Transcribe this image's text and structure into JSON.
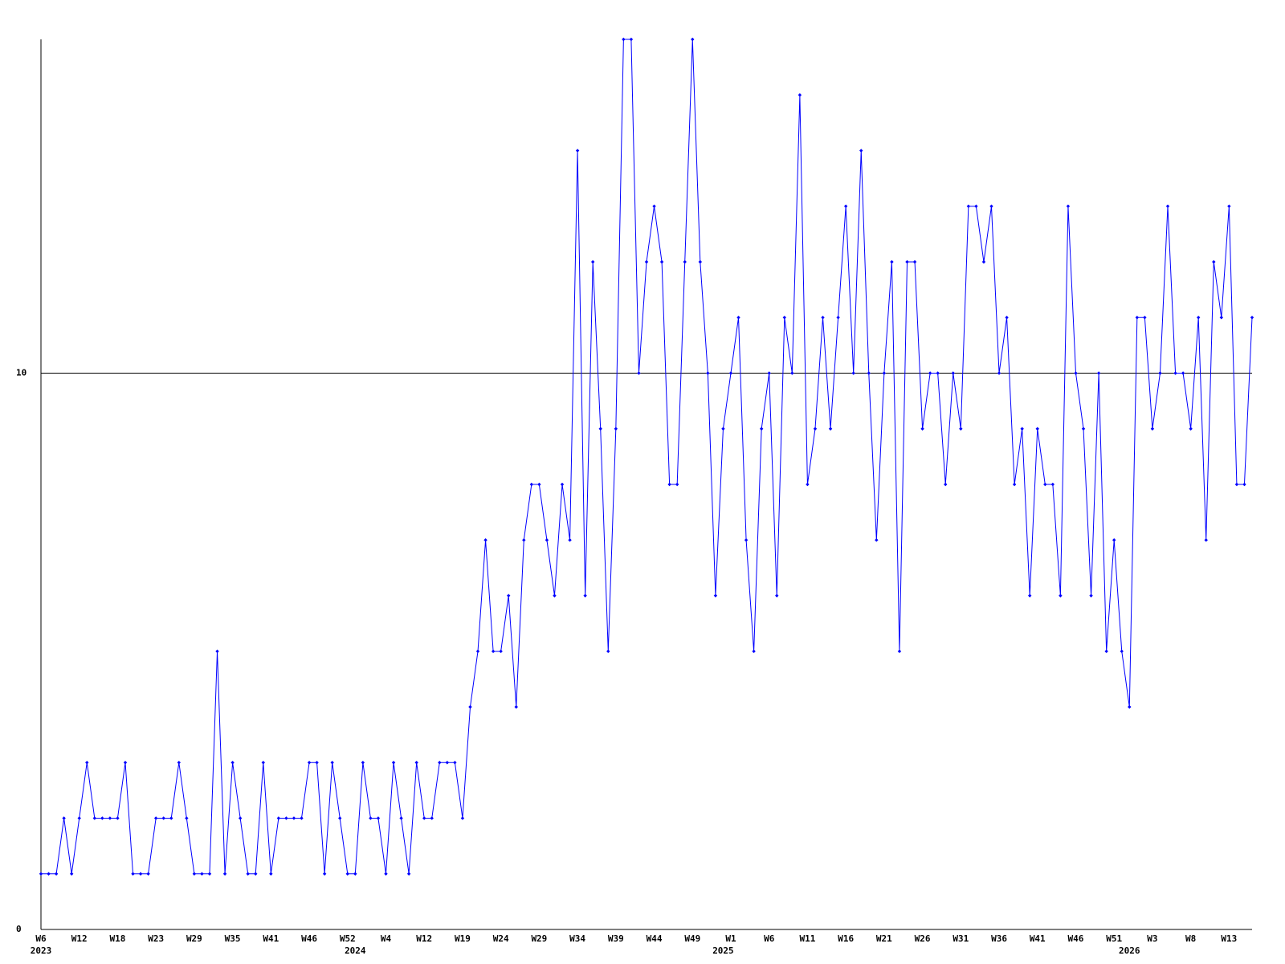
{
  "chart_data": {
    "type": "line",
    "color": "#0000ff",
    "ylim": [
      0,
      16
    ],
    "yticks": [
      0,
      10
    ],
    "grid": true,
    "values": [
      1,
      1,
      1,
      2,
      1,
      2,
      3,
      2,
      2,
      2,
      2,
      3,
      1,
      1,
      1,
      2,
      2,
      2,
      3,
      2,
      1,
      1,
      1,
      5,
      1,
      3,
      2,
      1,
      1,
      3,
      1,
      2,
      2,
      2,
      2,
      3,
      3,
      1,
      3,
      2,
      1,
      1,
      3,
      2,
      2,
      1,
      3,
      2,
      1,
      3,
      2,
      2,
      3,
      3,
      3,
      2,
      4,
      5,
      7,
      5,
      5,
      6,
      4,
      7,
      8,
      8,
      7,
      6,
      8,
      7,
      14,
      6,
      12,
      9,
      5,
      9,
      16,
      16,
      10,
      12,
      13,
      12,
      8,
      8,
      12,
      16,
      12,
      10,
      6,
      9,
      10,
      11,
      7,
      5,
      9,
      10,
      6,
      11,
      10,
      15,
      8,
      9,
      11,
      9,
      11,
      13,
      10,
      14,
      10,
      7,
      10,
      12,
      5,
      12,
      12,
      9,
      10,
      10,
      8,
      10,
      9,
      13,
      13,
      12,
      13,
      10,
      11,
      8,
      9,
      6,
      9,
      8,
      8,
      6,
      13,
      10,
      9,
      6,
      10,
      5,
      7,
      5,
      4,
      11,
      11,
      9,
      10,
      13,
      10,
      10,
      9,
      11,
      7,
      12,
      11,
      13,
      8,
      8,
      11
    ],
    "categories": [
      "W6",
      null,
      null,
      null,
      null,
      "W12",
      null,
      null,
      null,
      null,
      "W18",
      null,
      null,
      null,
      null,
      "W23",
      null,
      null,
      null,
      null,
      "W29",
      null,
      null,
      null,
      null,
      "W35",
      null,
      null,
      null,
      null,
      "W41",
      null,
      null,
      null,
      null,
      "W46",
      null,
      null,
      null,
      null,
      "W52",
      null,
      null,
      null,
      null,
      "W4",
      null,
      null,
      null,
      null,
      "W12",
      null,
      null,
      null,
      null,
      "W19",
      null,
      null,
      null,
      null,
      "W24",
      null,
      null,
      null,
      null,
      "W29",
      null,
      null,
      null,
      null,
      "W34",
      null,
      null,
      null,
      null,
      "W39",
      null,
      null,
      null,
      null,
      "W44",
      null,
      null,
      null,
      null,
      "W49",
      null,
      null,
      null,
      null,
      "W1",
      null,
      null,
      null,
      null,
      "W6",
      null,
      null,
      null,
      null,
      "W11",
      null,
      null,
      null,
      null,
      "W16",
      null,
      null,
      null,
      null,
      "W21",
      null,
      null,
      null,
      null,
      "W26",
      null,
      null,
      null,
      null,
      "W31",
      null,
      null,
      null,
      null,
      "W36",
      null,
      null,
      null,
      null,
      "W41",
      null,
      null,
      null,
      null,
      "W46",
      null,
      null,
      null,
      null,
      "W51",
      null,
      null,
      null,
      null,
      "W3",
      null,
      null,
      null,
      null,
      "W8",
      null,
      null,
      null,
      null,
      "W13",
      null,
      null,
      null
    ],
    "year_labels": [
      "2023",
      null,
      null,
      null,
      null,
      null,
      null,
      null,
      null,
      null,
      null,
      null,
      null,
      null,
      null,
      null,
      null,
      null,
      null,
      null,
      null,
      null,
      null,
      null,
      null,
      null,
      null,
      null,
      null,
      null,
      null,
      null,
      null,
      null,
      null,
      null,
      null,
      null,
      null,
      null,
      null,
      "2024",
      null,
      null,
      null,
      null,
      null,
      null,
      null,
      null,
      null,
      null,
      null,
      null,
      null,
      null,
      null,
      null,
      null,
      null,
      null,
      null,
      null,
      null,
      null,
      null,
      null,
      null,
      null,
      null,
      null,
      null,
      null,
      null,
      null,
      null,
      null,
      null,
      null,
      null,
      null,
      null,
      null,
      null,
      null,
      null,
      null,
      null,
      null,
      "2025",
      null,
      null,
      null,
      null,
      null,
      null,
      null,
      null,
      null,
      null,
      null,
      null,
      null,
      null,
      null,
      null,
      null,
      null,
      null,
      null,
      null,
      null,
      null,
      null,
      null,
      null,
      null,
      null,
      null,
      null,
      null,
      null,
      null,
      null,
      null,
      null,
      null,
      null,
      null,
      null,
      null,
      null,
      null,
      null,
      null,
      null,
      null,
      null,
      null,
      null,
      null,
      null,
      "2026",
      null,
      null,
      null,
      null,
      null,
      null,
      null,
      null,
      null,
      null,
      null,
      null,
      null,
      null,
      null,
      null
    ]
  }
}
